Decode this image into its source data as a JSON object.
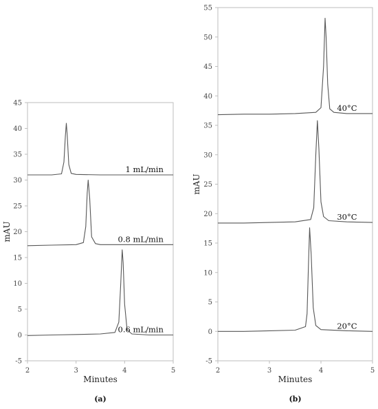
{
  "chart_data": [
    {
      "type": "line",
      "panel_label": "(a)",
      "xlabel": "Minutes",
      "ylabel": "mAU",
      "xlim": [
        2,
        5
      ],
      "ylim": [
        -5,
        45
      ],
      "x_ticks": [
        "2",
        "3",
        "4",
        "5"
      ],
      "y_ticks": [
        "-5",
        "0",
        "5",
        "10",
        "15",
        "20",
        "25",
        "30",
        "35",
        "40",
        "45"
      ],
      "grid": false,
      "legend": "none",
      "line_color": "#555555",
      "series": [
        {
          "name": "1 mL/min",
          "x": [
            2.0,
            2.5,
            2.7,
            2.75,
            2.78,
            2.8,
            2.82,
            2.85,
            2.9,
            3.0,
            3.5,
            4.0,
            4.5,
            5.0
          ],
          "y": [
            31.0,
            31.0,
            31.2,
            33.5,
            38.5,
            41.0,
            38.5,
            33.0,
            31.3,
            31.1,
            31.0,
            31.0,
            31.0,
            31.0
          ]
        },
        {
          "name": "0.8 mL/min",
          "x": [
            2.0,
            2.5,
            3.0,
            3.15,
            3.2,
            3.23,
            3.25,
            3.28,
            3.32,
            3.4,
            3.5,
            4.0,
            4.5,
            5.0
          ],
          "y": [
            17.3,
            17.4,
            17.5,
            17.9,
            21.0,
            27.5,
            30.0,
            26.5,
            19.0,
            17.7,
            17.5,
            17.5,
            17.5,
            17.5
          ]
        },
        {
          "name": "0.6 mL/min",
          "x": [
            2.0,
            2.5,
            3.0,
            3.5,
            3.8,
            3.88,
            3.92,
            3.95,
            3.97,
            4.0,
            4.05,
            4.15,
            4.5,
            5.0
          ],
          "y": [
            -0.1,
            0.0,
            0.1,
            0.2,
            0.5,
            2.5,
            10.0,
            16.5,
            14.0,
            6.0,
            1.0,
            0.2,
            0.0,
            0.0
          ]
        }
      ]
    },
    {
      "type": "line",
      "panel_label": "(b)",
      "xlabel": "Minutes",
      "ylabel": "mAU",
      "xlim": [
        2,
        5
      ],
      "ylim": [
        -5,
        55
      ],
      "x_ticks": [
        "2",
        "3",
        "4",
        "5"
      ],
      "y_ticks": [
        "-5",
        "0",
        "5",
        "10",
        "15",
        "20",
        "25",
        "30",
        "35",
        "40",
        "45",
        "50",
        "55"
      ],
      "grid": false,
      "legend": "none",
      "line_color": "#555555",
      "series": [
        {
          "name": "40°C",
          "x": [
            2.0,
            2.5,
            3.0,
            3.5,
            3.9,
            4.0,
            4.05,
            4.08,
            4.1,
            4.13,
            4.17,
            4.25,
            4.5,
            5.0
          ],
          "y": [
            36.8,
            36.9,
            36.9,
            37.0,
            37.2,
            38.0,
            45.0,
            53.2,
            50.0,
            42.0,
            37.8,
            37.2,
            37.0,
            37.0
          ]
        },
        {
          "name": "30°C",
          "x": [
            2.0,
            2.5,
            3.0,
            3.5,
            3.8,
            3.86,
            3.9,
            3.93,
            3.96,
            4.0,
            4.05,
            4.15,
            4.5,
            5.0
          ],
          "y": [
            18.4,
            18.4,
            18.5,
            18.6,
            19.0,
            21.0,
            30.0,
            35.8,
            31.0,
            22.0,
            19.5,
            18.8,
            18.6,
            18.5
          ]
        },
        {
          "name": "20°C",
          "x": [
            2.0,
            2.5,
            3.0,
            3.5,
            3.7,
            3.73,
            3.76,
            3.78,
            3.81,
            3.85,
            3.9,
            4.0,
            4.5,
            5.0
          ],
          "y": [
            0.0,
            0.0,
            0.1,
            0.2,
            0.8,
            3.0,
            12.0,
            17.6,
            13.0,
            4.0,
            1.0,
            0.3,
            0.1,
            0.0
          ]
        }
      ]
    }
  ]
}
